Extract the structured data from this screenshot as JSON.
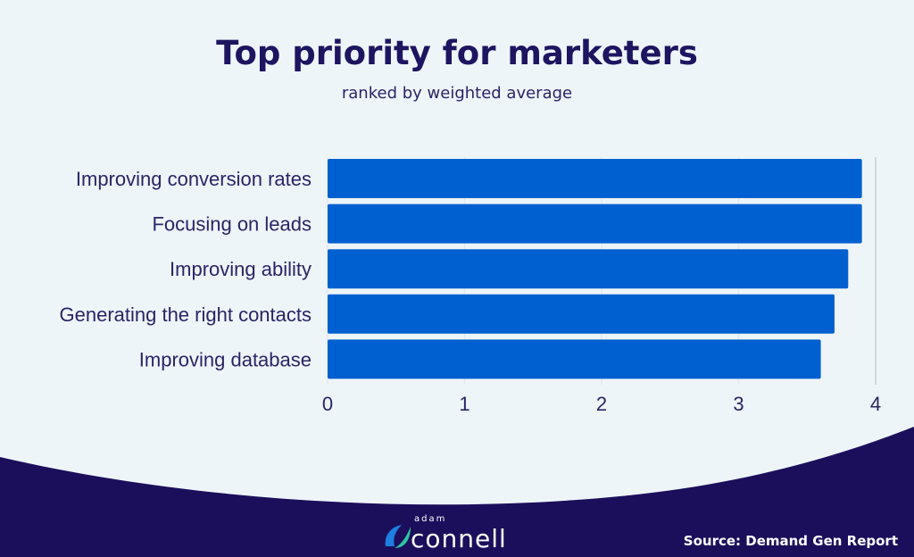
{
  "chart_data": {
    "type": "bar",
    "orientation": "horizontal",
    "title": "Top priority for marketers",
    "subtitle": "ranked by weighted average",
    "categories": [
      "Improving conversion rates",
      "Focusing on leads",
      "Improving ability",
      "Generating the right contacts",
      "Improving database"
    ],
    "values": [
      3.9,
      3.9,
      3.8,
      3.7,
      3.6
    ],
    "xlim": [
      0,
      4
    ],
    "xticks": [
      "0",
      "1",
      "2",
      "3",
      "4"
    ],
    "grid": true,
    "bar_color": "#0060d0"
  },
  "footer": {
    "source": "Source: Demand Gen Report",
    "logo_top": "adam",
    "logo_main": "connell",
    "background": "#1b0f5c"
  }
}
